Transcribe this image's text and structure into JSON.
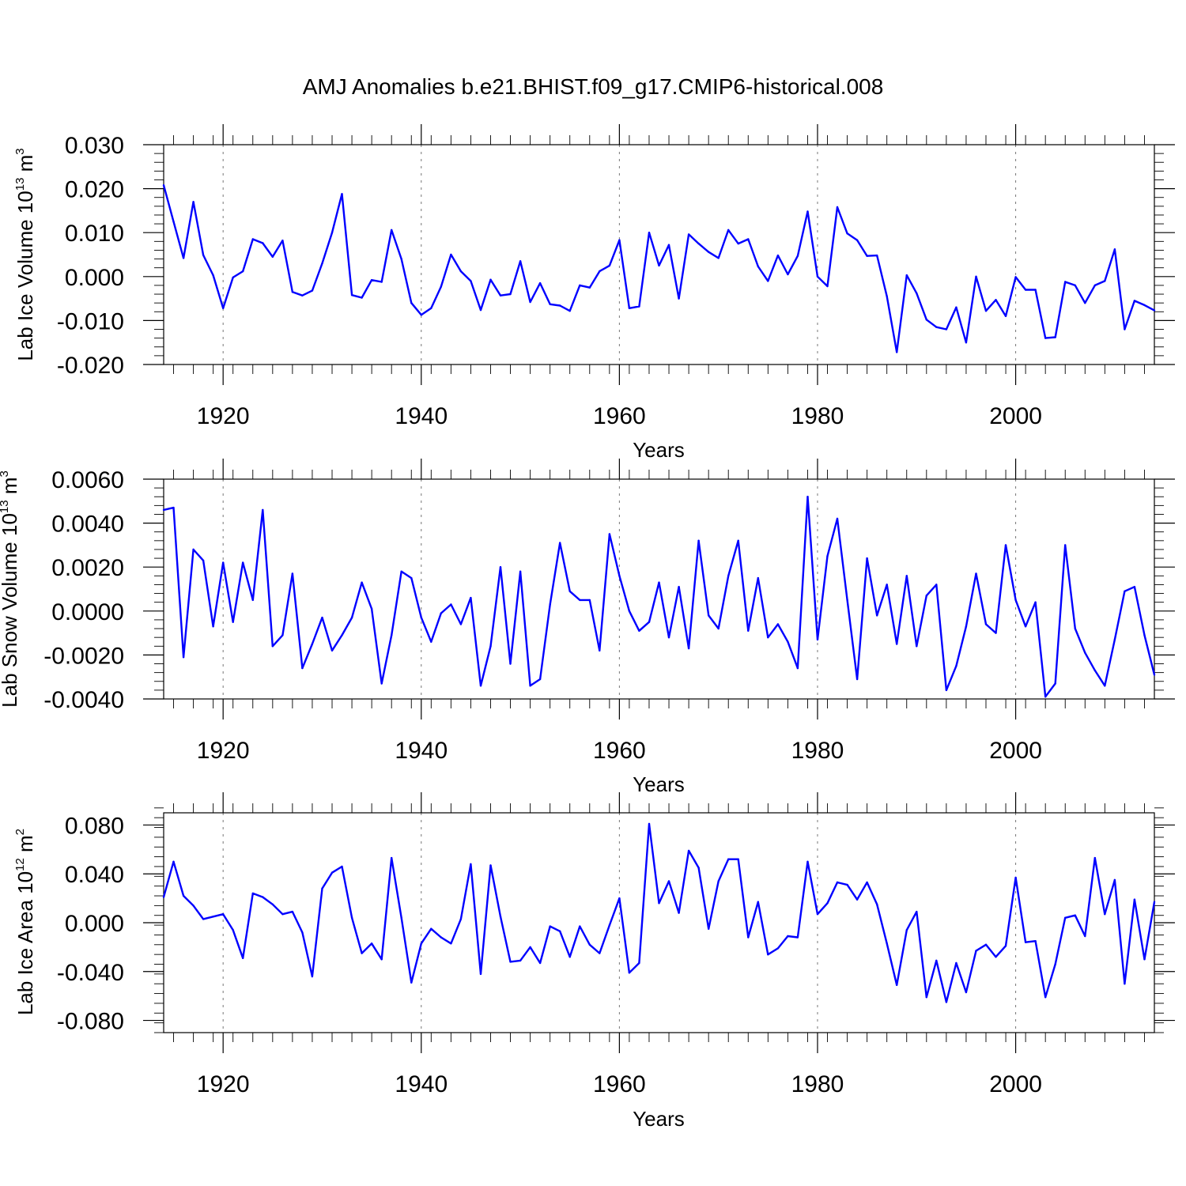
{
  "title": "AMJ Anomalies b.e21.BHIST.f09_g17.CMIP6-historical.008",
  "chart_data": [
    {
      "type": "line",
      "ylabel_main": "Lab Ice Volume 10",
      "ylabel_exp": "13",
      "ylabel_unit": " m",
      "ylabel_unit_exp": "3",
      "xlabel": "Years",
      "xlim": [
        1914,
        2014
      ],
      "ylim": [
        -0.02,
        0.03
      ],
      "xticks": [
        1920,
        1940,
        1960,
        1980,
        2000
      ],
      "xtick_labels": [
        "1920",
        "1940",
        "1960",
        "1980",
        "2000"
      ],
      "yticks": [
        -0.02,
        -0.01,
        0.0,
        0.01,
        0.02,
        0.03
      ],
      "ytick_labels": [
        "-0.020",
        "-0.010",
        "0.000",
        "0.010",
        "0.020",
        "0.030"
      ],
      "color": "#0000ff",
      "x_start": 1914,
      "values": [
        0.0208,
        0.0125,
        0.0042,
        0.017,
        0.0049,
        0.0003,
        -0.0072,
        -0.0002,
        0.0012,
        0.0085,
        0.0076,
        0.0045,
        0.0082,
        -0.0035,
        -0.0043,
        -0.0032,
        0.003,
        0.01,
        0.0188,
        -0.0042,
        -0.0048,
        -0.0008,
        -0.0012,
        0.0106,
        0.004,
        -0.006,
        -0.0087,
        -0.0072,
        -0.0023,
        0.005,
        0.0012,
        -0.001,
        -0.0076,
        -0.0007,
        -0.0043,
        -0.004,
        0.0035,
        -0.0058,
        -0.0015,
        -0.0063,
        -0.0066,
        -0.0078,
        -0.002,
        -0.0025,
        0.0012,
        0.0025,
        0.0083,
        -0.0072,
        -0.0068,
        0.01,
        0.0025,
        0.0072,
        -0.005,
        0.0096,
        0.0075,
        0.0056,
        0.0042,
        0.0106,
        0.0075,
        0.0085,
        0.0023,
        -0.001,
        0.0048,
        0.0005,
        0.0047,
        0.0148,
        0.0,
        -0.0022,
        0.0158,
        0.0098,
        0.0083,
        0.0047,
        0.0048,
        -0.0045,
        -0.0172,
        0.0003,
        -0.0038,
        -0.0098,
        -0.0115,
        -0.012,
        -0.007,
        -0.015,
        0.0,
        -0.0078,
        -0.0053,
        -0.009,
        -0.0001,
        -0.003,
        -0.003,
        -0.014,
        -0.0138,
        -0.0012,
        -0.002,
        -0.006,
        -0.002,
        -0.001,
        0.0062,
        -0.012,
        -0.0055,
        -0.0065,
        -0.0077
      ]
    },
    {
      "type": "line",
      "ylabel_main": "Lab Snow Volume 10",
      "ylabel_exp": "13",
      "ylabel_unit": " m",
      "ylabel_unit_exp": "3",
      "xlabel": "Years",
      "xlim": [
        1914,
        2014
      ],
      "ylim": [
        -0.004,
        0.006
      ],
      "xticks": [
        1920,
        1940,
        1960,
        1980,
        2000
      ],
      "xtick_labels": [
        "1920",
        "1940",
        "1960",
        "1980",
        "2000"
      ],
      "yticks": [
        -0.004,
        -0.002,
        0.0,
        0.002,
        0.004,
        0.006
      ],
      "ytick_labels": [
        "-0.0040",
        "-0.0020",
        "0.0000",
        "0.0020",
        "0.0040",
        "0.0060"
      ],
      "color": "#0000ff",
      "x_start": 1914,
      "values": [
        0.0046,
        0.0047,
        -0.0021,
        0.0028,
        0.0023,
        -0.0007,
        0.0022,
        -0.0005,
        0.0022,
        0.0005,
        0.0046,
        -0.0016,
        -0.0011,
        0.0017,
        -0.0026,
        -0.0015,
        -0.0003,
        -0.0018,
        -0.0011,
        -0.0003,
        0.0013,
        0.0001,
        -0.0033,
        -0.0011,
        0.0018,
        0.0015,
        -0.0003,
        -0.0014,
        -0.0001,
        0.0003,
        -0.0006,
        0.0006,
        -0.0034,
        -0.0016,
        0.002,
        -0.0024,
        0.0018,
        -0.0034,
        -0.0031,
        0.0003,
        0.0031,
        0.0009,
        0.0005,
        0.0005,
        -0.0018,
        0.0035,
        0.0016,
        0.0,
        -0.0009,
        -0.0005,
        0.0013,
        -0.0012,
        0.0011,
        -0.0017,
        0.0032,
        -0.0002,
        -0.0008,
        0.0016,
        0.0032,
        -0.0009,
        0.0015,
        -0.0012,
        -0.0006,
        -0.0014,
        -0.0026,
        0.0052,
        -0.0013,
        0.0025,
        0.0042,
        0.0005,
        -0.0031,
        0.0024,
        -0.0002,
        0.0012,
        -0.0015,
        0.0016,
        -0.0016,
        0.0007,
        0.0012,
        -0.0036,
        -0.0025,
        -0.0007,
        0.0017,
        -0.0006,
        -0.001,
        0.003,
        0.0005,
        -0.0007,
        0.0004,
        -0.0039,
        -0.0033,
        0.003,
        -0.0008,
        -0.0019,
        -0.0027,
        -0.0034,
        -0.0013,
        0.0009,
        0.0011,
        -0.0011,
        -0.0029
      ]
    },
    {
      "type": "line",
      "ylabel_main": "Lab Ice Area 10",
      "ylabel_exp": "12",
      "ylabel_unit": " m",
      "ylabel_unit_exp": "2",
      "xlabel": "Years",
      "xlim": [
        1914,
        2014
      ],
      "ylim": [
        -0.09,
        0.09
      ],
      "xticks": [
        1920,
        1940,
        1960,
        1980,
        2000
      ],
      "xtick_labels": [
        "1920",
        "1940",
        "1960",
        "1980",
        "2000"
      ],
      "yticks": [
        -0.08,
        -0.04,
        0.0,
        0.04,
        0.08
      ],
      "ytick_labels": [
        "-0.080",
        "-0.040",
        "0.000",
        "0.040",
        "0.080"
      ],
      "color": "#0000ff",
      "x_start": 1914,
      "values": [
        0.021,
        0.05,
        0.022,
        0.014,
        0.003,
        0.005,
        0.007,
        -0.006,
        -0.029,
        0.024,
        0.021,
        0.015,
        0.007,
        0.009,
        -0.008,
        -0.044,
        0.028,
        0.041,
        0.046,
        0.004,
        -0.025,
        -0.017,
        -0.03,
        0.053,
        0.004,
        -0.049,
        -0.017,
        -0.005,
        -0.012,
        -0.017,
        0.003,
        0.048,
        -0.042,
        0.047,
        0.005,
        -0.032,
        -0.031,
        -0.02,
        -0.033,
        -0.003,
        -0.007,
        -0.028,
        -0.003,
        -0.018,
        -0.025,
        -0.002,
        0.02,
        -0.041,
        -0.033,
        0.081,
        0.016,
        0.034,
        0.008,
        0.059,
        0.045,
        -0.005,
        0.034,
        0.052,
        0.052,
        -0.012,
        0.017,
        -0.026,
        -0.021,
        -0.011,
        -0.012,
        0.05,
        0.007,
        0.016,
        0.033,
        0.031,
        0.019,
        0.033,
        0.015,
        -0.017,
        -0.051,
        -0.006,
        0.009,
        -0.061,
        -0.031,
        -0.065,
        -0.033,
        -0.057,
        -0.023,
        -0.018,
        -0.028,
        -0.019,
        0.037,
        -0.016,
        -0.015,
        -0.061,
        -0.034,
        0.004,
        0.006,
        -0.011,
        0.053,
        0.007,
        0.035,
        -0.05,
        0.019,
        -0.03,
        0.017
      ]
    }
  ]
}
